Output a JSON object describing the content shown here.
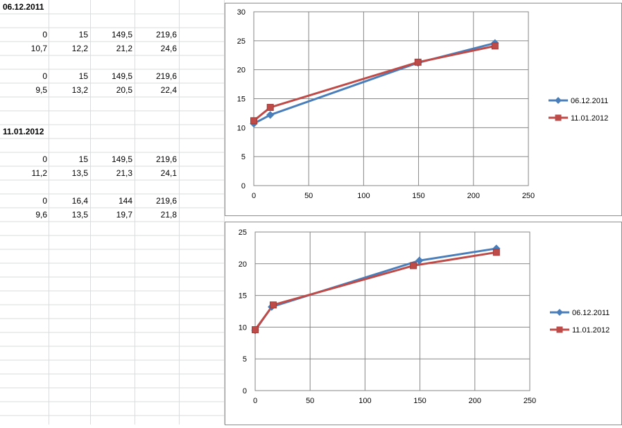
{
  "sheet": {
    "blocks": [
      {
        "header": "06.12.2011",
        "pairs": [
          {
            "x": [
              "0",
              "15",
              "149,5",
              "219,6"
            ],
            "y": [
              "10,7",
              "12,2",
              "21,2",
              "24,6"
            ]
          },
          {
            "x": [
              "0",
              "15",
              "149,5",
              "219,6"
            ],
            "y": [
              "9,5",
              "13,2",
              "20,5",
              "22,4"
            ]
          }
        ]
      },
      {
        "header": "11.01.2012",
        "pairs": [
          {
            "x": [
              "0",
              "15",
              "149,5",
              "219,6"
            ],
            "y": [
              "11,2",
              "13,5",
              "21,3",
              "24,1"
            ]
          },
          {
            "x": [
              "0",
              "16,4",
              "144",
              "219,6"
            ],
            "y": [
              "9,6",
              "13,5",
              "19,7",
              "21,8"
            ]
          }
        ]
      }
    ]
  },
  "chart_data": [
    {
      "type": "line",
      "xlim": [
        0,
        250
      ],
      "ylim": [
        0,
        30
      ],
      "x_ticks": [
        0,
        50,
        100,
        150,
        200,
        250
      ],
      "y_ticks": [
        0,
        5,
        10,
        15,
        20,
        25,
        30
      ],
      "grid": true,
      "legend_position": "right",
      "series": [
        {
          "name": "06.12.2011",
          "color": "#4a7ebb",
          "marker": "diamond",
          "x": [
            0,
            15,
            149.5,
            219.6
          ],
          "y": [
            10.7,
            12.2,
            21.2,
            24.6
          ]
        },
        {
          "name": "11.01.2012",
          "color": "#be4b48",
          "marker": "square",
          "x": [
            0,
            15,
            149.5,
            219.6
          ],
          "y": [
            11.2,
            13.5,
            21.3,
            24.1
          ]
        }
      ]
    },
    {
      "type": "line",
      "xlim": [
        0,
        250
      ],
      "ylim": [
        0,
        25
      ],
      "x_ticks": [
        0,
        50,
        100,
        150,
        200,
        250
      ],
      "y_ticks": [
        0,
        5,
        10,
        15,
        20,
        25
      ],
      "grid": true,
      "legend_position": "right",
      "series": [
        {
          "name": "06.12.2011",
          "color": "#4a7ebb",
          "marker": "diamond",
          "x": [
            0,
            15,
            149.5,
            219.6
          ],
          "y": [
            9.5,
            13.2,
            20.5,
            22.4
          ]
        },
        {
          "name": "11.01.2012",
          "color": "#be4b48",
          "marker": "square",
          "x": [
            0,
            16.4,
            144,
            219.6
          ],
          "y": [
            9.6,
            13.5,
            19.7,
            21.8
          ]
        }
      ]
    }
  ]
}
